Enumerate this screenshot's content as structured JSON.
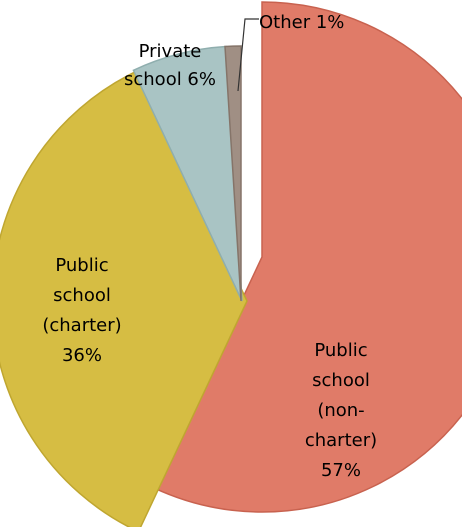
{
  "chart_data": {
    "type": "pie",
    "exploded": true,
    "start_angle_deg": 0,
    "direction": "clockwise",
    "slices": [
      {
        "label_lines": [
          "Public",
          "school",
          "(non-",
          "charter)",
          "57%"
        ],
        "value": 57,
        "color": "#E07B68",
        "stroke": "#C8624F"
      },
      {
        "label_lines": [
          "Public",
          "school",
          "(charter)",
          "36%"
        ],
        "value": 36,
        "color": "#D6BD43",
        "stroke": "#BFA630"
      },
      {
        "label_lines": [
          "Private",
          "school 6%"
        ],
        "value": 6,
        "color": "#A9C4C4",
        "stroke": "#8FAEAE"
      },
      {
        "label_lines": [
          "Other 1%"
        ],
        "value": 1,
        "color": "#A08F84",
        "stroke": "#857469"
      }
    ]
  }
}
